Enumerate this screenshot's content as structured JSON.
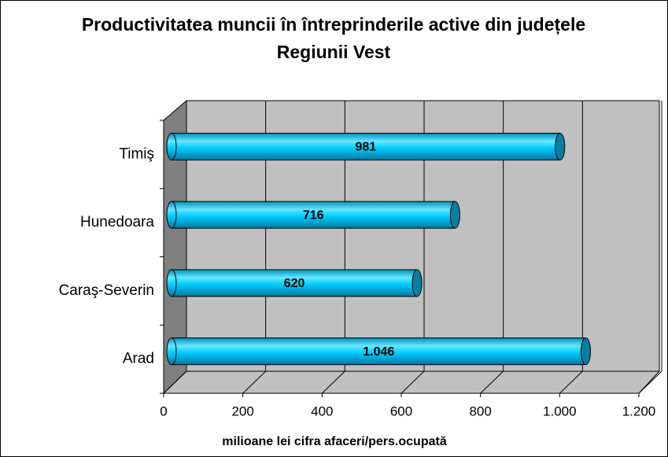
{
  "chart_data": {
    "type": "bar3d",
    "orientation": "horizontal",
    "title": "Productivitatea muncii în întreprinderile active din județele Regiunii Vest",
    "x_label": "milioane lei cifra afaceri/pers.ocupată",
    "categories": [
      "Arad",
      "Caraş-Severin",
      "Hunedoara",
      "Timiş"
    ],
    "values": [
      1046,
      620,
      716,
      981
    ],
    "value_labels": [
      "1.046",
      "620",
      "716",
      "981"
    ],
    "color": "#00ccff",
    "xlim": [
      0,
      1200
    ],
    "xticks": [
      0,
      200,
      400,
      600,
      800,
      {
        "value": 1000,
        "label": "1.000"
      },
      {
        "value": 1200,
        "label": "1.200"
      }
    ],
    "grid": true
  }
}
